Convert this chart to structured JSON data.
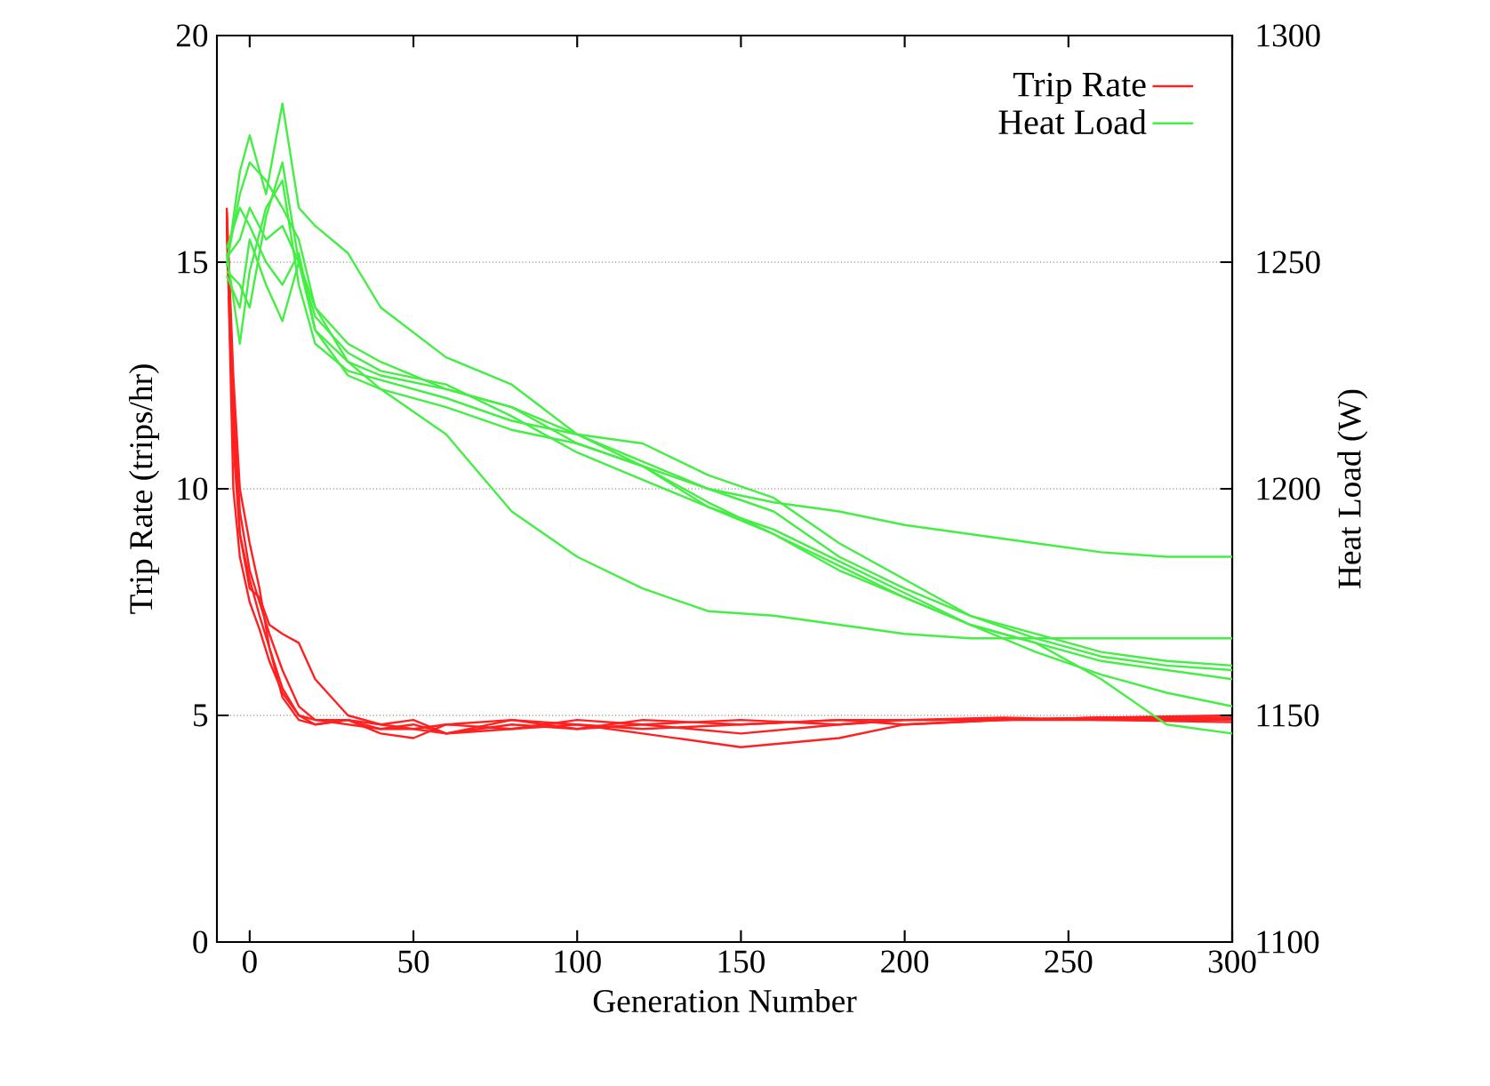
{
  "chart_data": {
    "type": "line",
    "xlabel": "Generation Number",
    "ylabel": "Trip Rate (trips/hr)",
    "y2label": "Heat Load (W)",
    "xlim": [
      -10,
      300
    ],
    "xticks": [
      0,
      50,
      100,
      150,
      200,
      250,
      300
    ],
    "ylim": [
      0,
      20
    ],
    "yticks": [
      0,
      5,
      10,
      15,
      20
    ],
    "y2lim": [
      1100,
      1300
    ],
    "y2ticks": [
      1100,
      1150,
      1200,
      1250,
      1300
    ],
    "grid": "y",
    "legend": "top right",
    "series": [
      {
        "name": "Trip Rate",
        "color": "#ff2020",
        "axis": "y",
        "x": [
          -7,
          -5,
          -3,
          0,
          3,
          6,
          10,
          15,
          20,
          30,
          40,
          50,
          60,
          80,
          100,
          120,
          150,
          180,
          200,
          230,
          260,
          300
        ],
        "values": [
          16,
          12,
          9.5,
          8.2,
          7.5,
          6.8,
          6,
          5.2,
          4.9,
          4.9,
          4.7,
          4.8,
          4.6,
          4.8,
          4.7,
          4.9,
          4.8,
          4.9,
          4.8,
          4.9,
          4.95,
          4.95
        ]
      },
      {
        "color": "#ff2020",
        "axis": "y",
        "x": [
          -7,
          -5,
          -3,
          0,
          3,
          6,
          10,
          15,
          20,
          30,
          40,
          50,
          60,
          80,
          100,
          120,
          150,
          180,
          200,
          230,
          260,
          300
        ],
        "values": [
          15.8,
          11,
          9,
          7.8,
          7.6,
          7,
          6.8,
          6.6,
          5.8,
          5.0,
          4.8,
          4.7,
          4.8,
          4.9,
          4.8,
          4.7,
          4.8,
          4.9,
          4.9,
          4.95,
          4.9,
          4.9
        ]
      },
      {
        "color": "#ff2020",
        "axis": "y",
        "x": [
          -7,
          -5,
          -3,
          0,
          3,
          6,
          10,
          15,
          20,
          30,
          40,
          50,
          60,
          80,
          100,
          120,
          150,
          180,
          200,
          230,
          260,
          300
        ],
        "values": [
          16.1,
          10,
          8.5,
          7.5,
          6.9,
          6.2,
          5.5,
          5.0,
          4.8,
          4.9,
          4.6,
          4.5,
          4.8,
          4.7,
          4.9,
          4.8,
          4.6,
          4.8,
          4.9,
          4.9,
          4.95,
          5.0
        ]
      },
      {
        "color": "#ff2020",
        "axis": "y",
        "x": [
          -7,
          -5,
          -3,
          0,
          3,
          6,
          10,
          15,
          20,
          30,
          40,
          50,
          60,
          80,
          100,
          120,
          150,
          180,
          200,
          230,
          260,
          300
        ],
        "values": [
          15.9,
          11.5,
          9,
          8,
          7.2,
          6.5,
          5.6,
          5.0,
          4.9,
          4.8,
          4.7,
          4.7,
          4.6,
          4.7,
          4.8,
          4.6,
          4.3,
          4.5,
          4.8,
          4.9,
          4.9,
          4.85
        ]
      },
      {
        "color": "#ff2020",
        "axis": "y",
        "x": [
          -7,
          -5,
          -3,
          0,
          3,
          6,
          10,
          15,
          20,
          30,
          40,
          50,
          60,
          80,
          100,
          120,
          150,
          180,
          200,
          230,
          260,
          300
        ],
        "values": [
          16.2,
          12.5,
          10,
          8.8,
          7.8,
          6.5,
          5.4,
          4.9,
          4.8,
          4.9,
          4.8,
          4.9,
          4.6,
          4.9,
          4.7,
          4.8,
          4.9,
          4.8,
          4.9,
          4.9,
          4.95,
          4.92
        ]
      },
      {
        "name": "Heat Load",
        "color": "#44ee44",
        "axis": "y2",
        "x": [
          -7,
          -3,
          0,
          5,
          10,
          15,
          20,
          30,
          40,
          60,
          80,
          100,
          120,
          140,
          160,
          180,
          200,
          220,
          240,
          260,
          280,
          300
        ],
        "values": [
          1250,
          1265,
          1272,
          1268,
          1262,
          1255,
          1240,
          1232,
          1228,
          1222,
          1218,
          1212,
          1206,
          1200,
          1197,
          1195,
          1192,
          1190,
          1188,
          1186,
          1185,
          1185
        ]
      },
      {
        "color": "#44ee44",
        "axis": "y2",
        "x": [
          -7,
          -3,
          0,
          5,
          10,
          15,
          20,
          30,
          40,
          60,
          80,
          100,
          120,
          140,
          160,
          180,
          200,
          220,
          240,
          260,
          280,
          300
        ],
        "values": [
          1249,
          1270,
          1278,
          1265,
          1285,
          1262,
          1258,
          1252,
          1240,
          1229,
          1223,
          1212,
          1205,
          1196,
          1190,
          1183,
          1176,
          1170,
          1166,
          1158,
          1148,
          1146
        ]
      },
      {
        "color": "#44ee44",
        "axis": "y2",
        "x": [
          -7,
          -3,
          0,
          5,
          10,
          15,
          20,
          30,
          40,
          60,
          80,
          100,
          120,
          140,
          160,
          180,
          200,
          220,
          240,
          260,
          280,
          300
        ],
        "values": [
          1251,
          1255,
          1262,
          1255,
          1258,
          1250,
          1235,
          1228,
          1222,
          1212,
          1195,
          1185,
          1178,
          1173,
          1172,
          1170,
          1168,
          1167,
          1167,
          1167,
          1167,
          1167
        ]
      },
      {
        "color": "#44ee44",
        "axis": "y2",
        "x": [
          -7,
          -3,
          0,
          5,
          10,
          15,
          20,
          30,
          40,
          60,
          80,
          100,
          120,
          140,
          160,
          180,
          200,
          220,
          240,
          260,
          280,
          300
        ],
        "values": [
          1248,
          1245,
          1240,
          1260,
          1272,
          1250,
          1240,
          1228,
          1225,
          1222,
          1218,
          1210,
          1205,
          1200,
          1195,
          1185,
          1178,
          1172,
          1167,
          1163,
          1161,
          1160
        ]
      },
      {
        "color": "#44ee44",
        "axis": "y2",
        "x": [
          -7,
          -3,
          0,
          5,
          10,
          15,
          20,
          30,
          40,
          60,
          80,
          100,
          120,
          140,
          160,
          180,
          200,
          220,
          240,
          260,
          280,
          300
        ],
        "values": [
          1252,
          1232,
          1248,
          1262,
          1268,
          1245,
          1232,
          1226,
          1224,
          1220,
          1215,
          1212,
          1210,
          1203,
          1198,
          1188,
          1180,
          1172,
          1168,
          1164,
          1162,
          1161
        ]
      },
      {
        "color": "#44ee44",
        "axis": "y2",
        "x": [
          -7,
          -3,
          0,
          5,
          10,
          15,
          20,
          30,
          40,
          60,
          80,
          100,
          120,
          140,
          160,
          180,
          200,
          220,
          240,
          260,
          280,
          300
        ],
        "values": [
          1253,
          1262,
          1258,
          1250,
          1245,
          1252,
          1235,
          1225,
          1222,
          1218,
          1213,
          1210,
          1205,
          1197,
          1190,
          1182,
          1176,
          1170,
          1166,
          1162,
          1160,
          1158
        ]
      },
      {
        "color": "#44ee44",
        "axis": "y2",
        "x": [
          -7,
          -3,
          0,
          5,
          10,
          15,
          20,
          30,
          40,
          60,
          80,
          100,
          120,
          140,
          160,
          180,
          200,
          220,
          240,
          260,
          280,
          300
        ],
        "values": [
          1247,
          1240,
          1255,
          1245,
          1237,
          1250,
          1238,
          1230,
          1226,
          1223,
          1216,
          1208,
          1202,
          1196,
          1191,
          1184,
          1177,
          1170,
          1164,
          1159,
          1155,
          1152
        ]
      }
    ]
  }
}
